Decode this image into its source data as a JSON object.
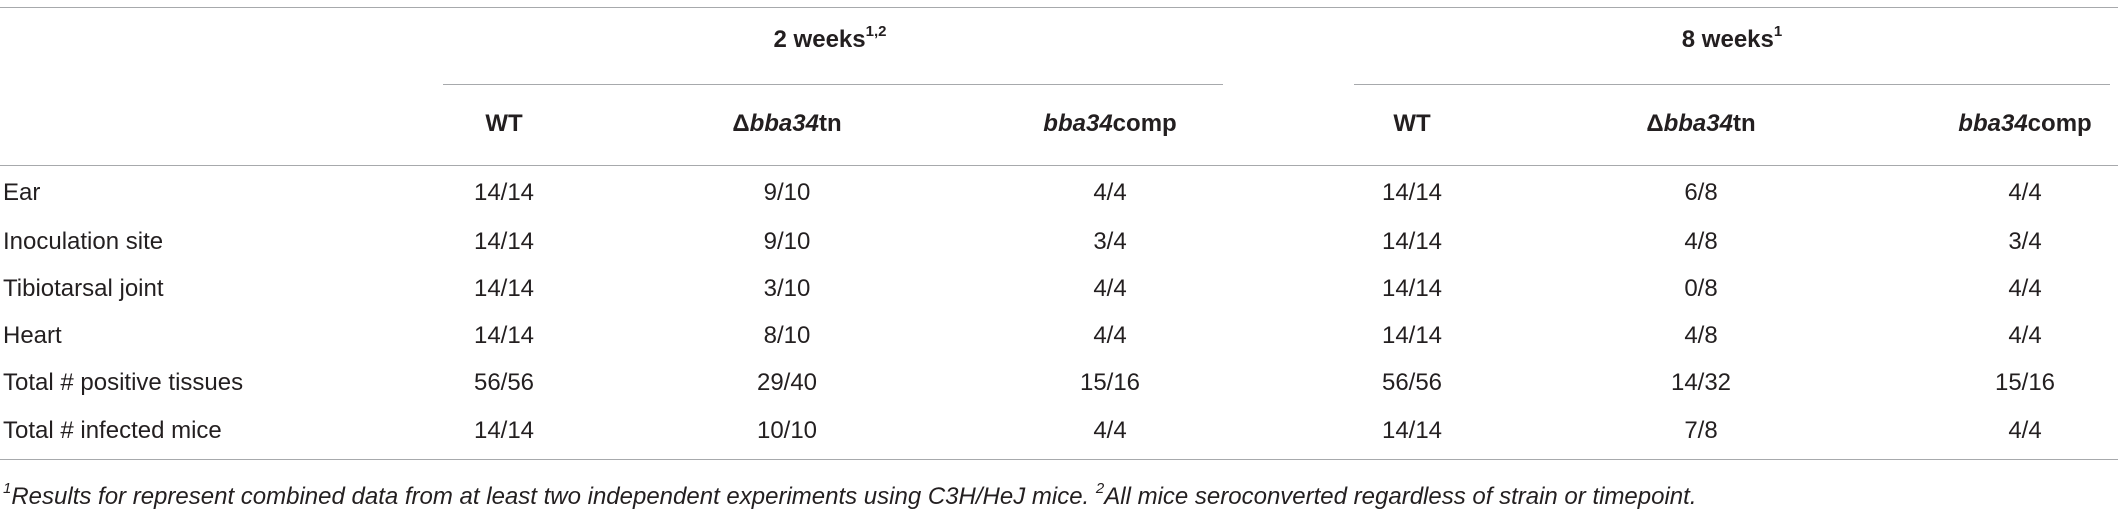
{
  "table": {
    "groups": [
      {
        "label": "2 weeks",
        "sup": "1,2"
      },
      {
        "label": "8 weeks",
        "sup": "1"
      }
    ],
    "columns": [
      [
        {
          "text": "WT"
        }
      ],
      [
        {
          "text": "Δ"
        },
        {
          "text": "bba34",
          "italic": true
        },
        {
          "text": "tn"
        }
      ],
      [
        {
          "text": "bba34",
          "italic": true
        },
        {
          "text": "comp"
        }
      ],
      [
        {
          "text": "WT"
        }
      ],
      [
        {
          "text": "Δ"
        },
        {
          "text": "bba34",
          "italic": true
        },
        {
          "text": "tn"
        }
      ],
      [
        {
          "text": "bba34",
          "italic": true
        },
        {
          "text": "comp"
        }
      ]
    ],
    "rows": [
      {
        "label": "Ear",
        "cells": [
          "14/14",
          "9/10",
          "4/4",
          "14/14",
          "6/8",
          "4/4"
        ]
      },
      {
        "label": "Inoculation site",
        "cells": [
          "14/14",
          "9/10",
          "3/4",
          "14/14",
          "4/8",
          "3/4"
        ]
      },
      {
        "label": "Tibiotarsal joint",
        "cells": [
          "14/14",
          "3/10",
          "4/4",
          "14/14",
          "0/8",
          "4/4"
        ]
      },
      {
        "label": "Heart",
        "cells": [
          "14/14",
          "8/10",
          "4/4",
          "14/14",
          "4/8",
          "4/4"
        ]
      },
      {
        "label": "Total # positive tissues",
        "cells": [
          "56/56",
          "29/40",
          "15/16",
          "56/56",
          "14/32",
          "15/16"
        ]
      },
      {
        "label": "Total # infected mice",
        "cells": [
          "14/14",
          "10/10",
          "4/4",
          "14/14",
          "7/8",
          "4/4"
        ]
      }
    ]
  },
  "footnote": [
    {
      "text": "1",
      "sup": true
    },
    {
      "text": "Results for represent combined data from at least two independent experiments using C3H/HeJ mice. "
    },
    {
      "text": "2",
      "sup": true
    },
    {
      "text": "All mice seroconverted regardless of strain or timepoint."
    }
  ]
}
